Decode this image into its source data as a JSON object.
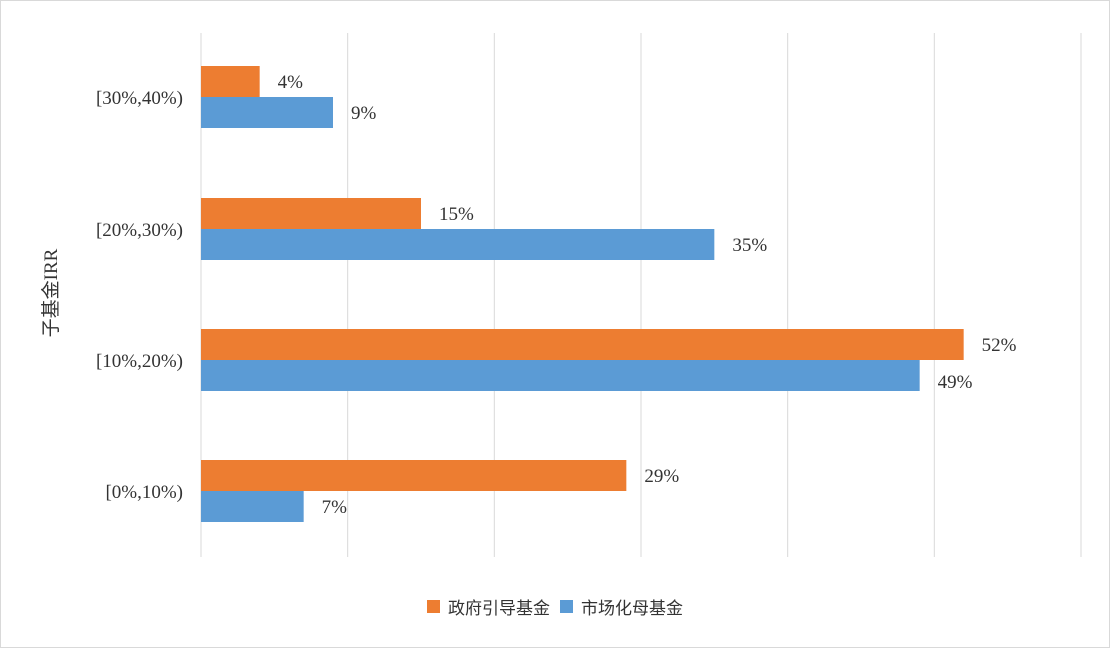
{
  "chart_data": {
    "type": "bar",
    "orientation": "horizontal",
    "ylabel": "子基金IRR",
    "categories": [
      "[30%,40%)",
      "[20%,30%)",
      "[10%,20%)",
      "[0%,10%)"
    ],
    "series": [
      {
        "name": "政府引导基金",
        "color": "#ED7D31",
        "values": [
          4,
          15,
          52,
          29
        ],
        "labels": [
          "4%",
          "15%",
          "52%",
          "29%"
        ]
      },
      {
        "name": "市场化母基金",
        "color": "#5B9BD5",
        "values": [
          9,
          35,
          49,
          7
        ],
        "labels": [
          "9%",
          "35%",
          "49%",
          "7%"
        ]
      }
    ],
    "xlim": [
      0,
      60
    ],
    "grid": true,
    "legend": "bottom"
  }
}
